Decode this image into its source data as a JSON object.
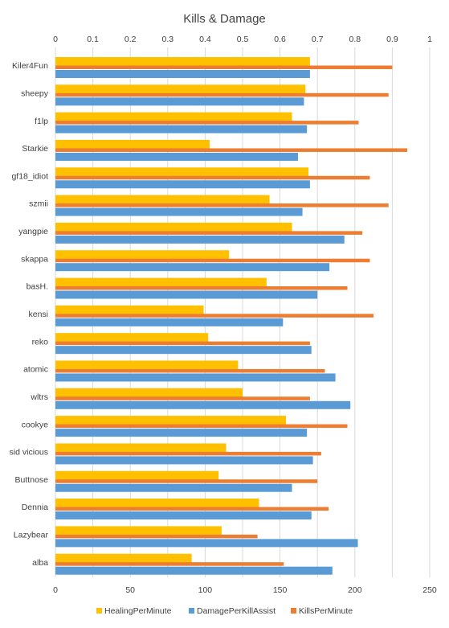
{
  "chart_data": {
    "type": "bar",
    "orientation": "horizontal",
    "title": "Kills & Damage",
    "categories": [
      "Kiler4Fun",
      "sheepy",
      "f1lp",
      "Starkie",
      "gf18_idiot",
      "szmii",
      "yangpie",
      "skappa",
      "basH.",
      "kensi",
      "reko",
      "atomic",
      "wltrs",
      "cookye",
      "sid vicious",
      "Buttnose",
      "Dennia",
      "Lazybear",
      "alba"
    ],
    "top_axis": {
      "min": 0,
      "max": 1,
      "ticks": [
        "0",
        "0.1",
        "0.2",
        "0.3",
        "0.4",
        "0.5",
        "0.6",
        "0.7",
        "0.8",
        "0.9",
        "1"
      ]
    },
    "bottom_axis": {
      "min": 0,
      "max": 250,
      "ticks": [
        "0",
        "50",
        "100",
        "150",
        "200",
        "250"
      ]
    },
    "grid": true,
    "legend_position": "bottom",
    "series": [
      {
        "name": "HealingPerMinute",
        "axis": "bottom",
        "color": "#FFC000",
        "values": [
          170,
          167,
          158,
          103,
          169,
          143,
          158,
          116,
          141,
          99,
          102,
          122,
          125,
          154,
          114,
          109,
          136,
          111,
          91
        ]
      },
      {
        "name": "DamagePerKillAssist",
        "axis": "bottom",
        "color": "#5B9BD5",
        "values": [
          170,
          166,
          168,
          162,
          170,
          165,
          193,
          183,
          175,
          152,
          171,
          187,
          197,
          168,
          172,
          158,
          171,
          202,
          185
        ]
      },
      {
        "name": "KillsPerMinute",
        "axis": "top",
        "color": "#ED7D31",
        "values": [
          0.9,
          0.89,
          0.81,
          0.94,
          0.84,
          0.89,
          0.82,
          0.84,
          0.78,
          0.85,
          0.68,
          0.72,
          0.68,
          0.78,
          0.71,
          0.7,
          0.73,
          0.54,
          0.61
        ]
      }
    ]
  }
}
